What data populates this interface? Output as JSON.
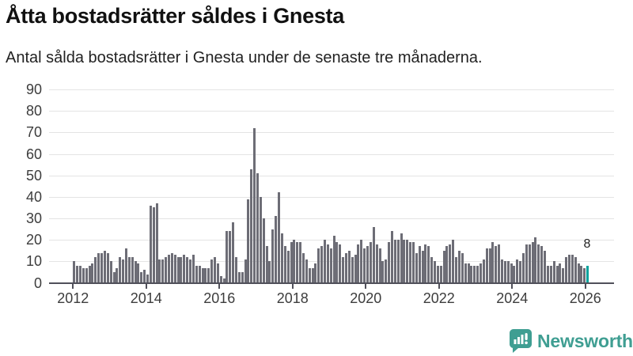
{
  "header": {
    "title": "Åtta bostadsrätter såldes i Gnesta",
    "subtitle": "Antal sålda bostadsrätter i Gnesta under de senaste tre månaderna."
  },
  "chart_data": {
    "type": "bar",
    "title": "Åtta bostadsrätter såldes i Gnesta",
    "subtitle": "Antal sålda bostadsrätter i Gnesta under de senaste tre månaderna.",
    "x_axis": {
      "start": "2012-01",
      "interval": "monthly",
      "tick_labels": [
        "2012",
        "2014",
        "2016",
        "2018",
        "2020",
        "2022",
        "2024",
        "2026"
      ]
    },
    "y_axis": {
      "ticks": [
        0,
        10,
        20,
        30,
        40,
        50,
        60,
        70,
        80,
        90
      ],
      "range": [
        0,
        90
      ]
    },
    "grid": "horizontal",
    "legend": "none",
    "values": [
      10,
      8,
      8,
      7,
      7,
      8,
      9,
      12,
      14,
      14,
      15,
      14,
      10,
      5,
      7,
      12,
      11,
      16,
      12,
      12,
      10,
      9,
      5,
      6,
      4,
      36,
      35,
      37,
      11,
      11,
      12,
      13,
      14,
      13,
      12,
      12,
      13,
      12,
      11,
      13,
      8,
      8,
      7,
      7,
      7,
      11,
      12,
      9,
      3,
      2,
      24,
      24,
      28,
      12,
      5,
      5,
      11,
      39,
      53,
      72,
      51,
      40,
      30,
      17,
      10,
      25,
      31,
      42,
      23,
      17,
      15,
      19,
      20,
      19,
      19,
      14,
      11,
      7,
      7,
      9,
      16,
      17,
      20,
      18,
      16,
      22,
      19,
      18,
      12,
      14,
      15,
      12,
      13,
      18,
      20,
      16,
      17,
      19,
      26,
      18,
      16,
      10,
      11,
      19,
      24,
      20,
      20,
      23,
      20,
      20,
      19,
      19,
      14,
      17,
      15,
      18,
      17,
      12,
      10,
      8,
      8,
      15,
      17,
      18,
      20,
      12,
      15,
      14,
      9,
      9,
      8,
      8,
      8,
      9,
      11,
      16,
      16,
      19,
      17,
      18,
      11,
      10,
      10,
      9,
      8,
      11,
      10,
      14,
      18,
      18,
      19,
      21,
      18,
      17,
      15,
      8,
      8,
      10,
      8,
      9,
      7,
      12,
      13,
      13,
      12,
      9,
      8,
      7,
      8
    ],
    "highlight": {
      "index": 168,
      "value": 8,
      "label": "8"
    },
    "colors": {
      "bar": "#6d6d76",
      "highlight": "#00a29c",
      "gridline": "#e4e4e4",
      "axis": "#50505a",
      "text": "#3d3d3d"
    }
  },
  "footer": {
    "brand": "Newsworthy",
    "brand_color": "#3f9e92"
  }
}
